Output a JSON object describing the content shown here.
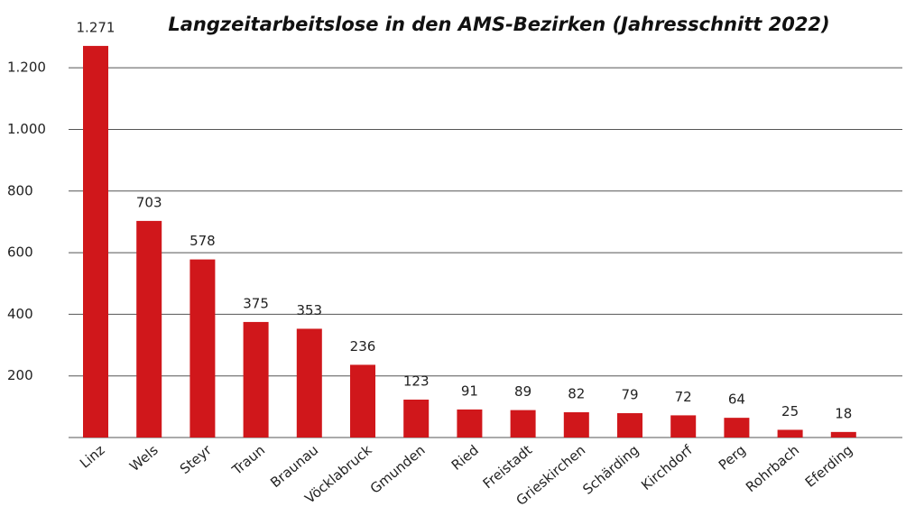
{
  "chart_data": {
    "type": "bar",
    "title": "Langzeitarbeitslose in den AMS-Bezirken (Jahresschnitt 2022)",
    "categories": [
      "Linz",
      "Wels",
      "Steyr",
      "Traun",
      "Braunau",
      "Vöcklabruck",
      "Gmunden",
      "Ried",
      "Freistadt",
      "Grieskirchen",
      "Schärding",
      "Kirchdorf",
      "Perg",
      "Rohrbach",
      "Eferding"
    ],
    "values": [
      1271,
      703,
      578,
      375,
      353,
      236,
      123,
      91,
      89,
      82,
      79,
      72,
      64,
      25,
      18
    ],
    "value_labels": [
      "1.271",
      "703",
      "578",
      "375",
      "353",
      "236",
      "123",
      "91",
      "89",
      "82",
      "79",
      "72",
      "64",
      "25",
      "18"
    ],
    "color": "#d0171b",
    "ylim": [
      0,
      1300
    ],
    "yticks": [
      200,
      400,
      600,
      800,
      {
        "value": 1000,
        "label": "1.000"
      },
      {
        "value": 1200,
        "label": "1.200"
      }
    ],
    "grid": true
  }
}
